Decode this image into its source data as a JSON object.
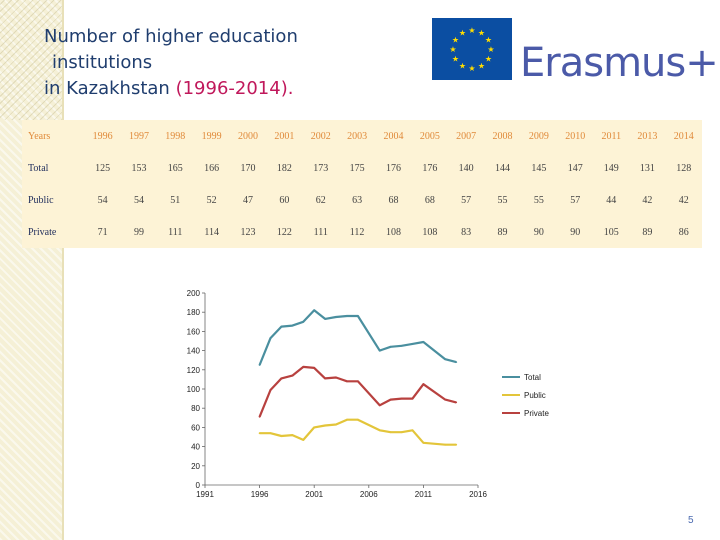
{
  "title": {
    "line1": "Number of higher education",
    "line2": "institutions",
    "line3_main": "in Kazakhstan",
    "line3_years": "(1996-2014)."
  },
  "logo": {
    "text": "Erasmus+",
    "colors": {
      "flag": "#0b4ea2",
      "stars": "#ffdd00",
      "text": "#4b5aa8"
    }
  },
  "table": {
    "header_label": "Years",
    "years": [
      "1996",
      "1997",
      "1998",
      "1999",
      "2000",
      "2001",
      "2002",
      "2003",
      "2004",
      "2005",
      "2007",
      "2008",
      "2009",
      "2010",
      "2011",
      "2013",
      "2014"
    ],
    "rows": [
      {
        "label": "Total",
        "values": [
          "125",
          "153",
          "165",
          "166",
          "170",
          "182",
          "173",
          "175",
          "176",
          "176",
          "140",
          "144",
          "145",
          "147",
          "149",
          "131",
          "128"
        ]
      },
      {
        "label": "Public",
        "values": [
          "54",
          "54",
          "51",
          "52",
          "47",
          "60",
          "62",
          "63",
          "68",
          "68",
          "57",
          "55",
          "55",
          "57",
          "44",
          "42",
          "42"
        ]
      },
      {
        "label": "Private",
        "values": [
          "71",
          "99",
          "111",
          "114",
          "123",
          "122",
          "111",
          "112",
          "108",
          "108",
          "83",
          "89",
          "90",
          "90",
          "105",
          "89",
          "86"
        ]
      }
    ]
  },
  "chart_data": {
    "type": "line",
    "x": [
      1996,
      1997,
      1998,
      1999,
      2000,
      2001,
      2002,
      2003,
      2004,
      2005,
      2007,
      2008,
      2009,
      2010,
      2011,
      2013,
      2014
    ],
    "series": [
      {
        "name": "Total",
        "color": "#4a8f9f",
        "values": [
          125,
          153,
          165,
          166,
          170,
          182,
          173,
          175,
          176,
          176,
          140,
          144,
          145,
          147,
          149,
          131,
          128
        ]
      },
      {
        "name": "Public",
        "color": "#e3c53a",
        "values": [
          54,
          54,
          51,
          52,
          47,
          60,
          62,
          63,
          68,
          68,
          57,
          55,
          55,
          57,
          44,
          42,
          42
        ]
      },
      {
        "name": "Private",
        "color": "#b8413f",
        "values": [
          71,
          99,
          111,
          114,
          123,
          122,
          111,
          112,
          108,
          108,
          83,
          89,
          90,
          90,
          105,
          89,
          86
        ]
      }
    ],
    "xlim": [
      1991,
      2016
    ],
    "xticks": [
      1991,
      1996,
      2001,
      2006,
      2011,
      2016
    ],
    "ylim": [
      0,
      200
    ],
    "yticks": [
      0,
      20,
      40,
      60,
      80,
      100,
      120,
      140,
      160,
      180,
      200
    ],
    "legend_position": "right",
    "grid": false
  },
  "page_number": "5"
}
